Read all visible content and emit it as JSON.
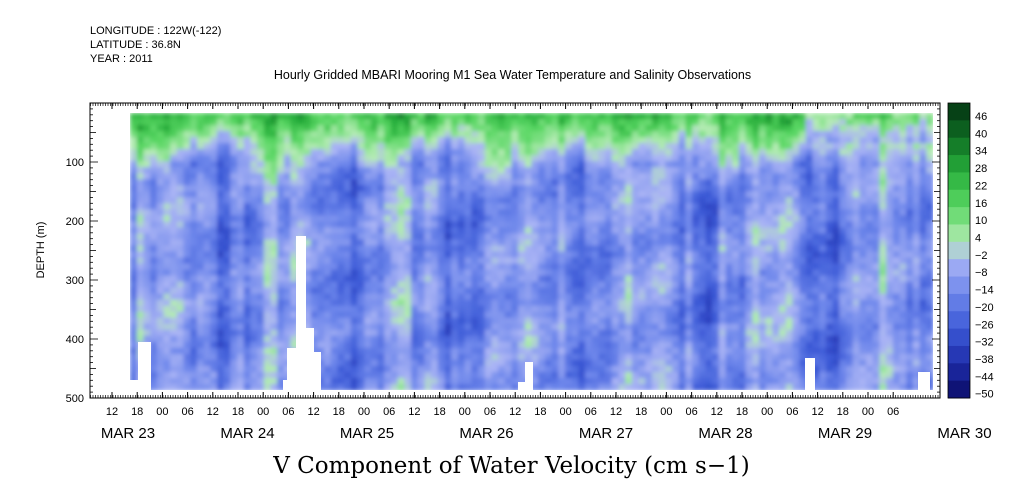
{
  "header": {
    "longitude": "LONGITUDE : 122W(-122)",
    "latitude": "LATITUDE : 36.8N",
    "year": "YEAR : 2011",
    "title": "Hourly Gridded MBARI Mooring M1 Sea Water Temperature and Salinity Observations"
  },
  "chart_data": {
    "type": "heatmap",
    "title": "Hourly Gridded MBARI Mooring M1 Sea Water Temperature and Salinity Observations",
    "subtitle": "V Component of Water Velocity (cm s-1)",
    "xlabel": "",
    "ylabel": "DEPTH (m)",
    "y_reversed": true,
    "ylim": [
      500,
      0
    ],
    "y_ticks": [
      100,
      200,
      300,
      400,
      500
    ],
    "x_hour_ticks": [
      "12",
      "18",
      "00",
      "06",
      "12",
      "18",
      "00",
      "06",
      "12",
      "18",
      "00",
      "06",
      "12",
      "18",
      "00",
      "06",
      "12",
      "18",
      "00",
      "06",
      "12",
      "18",
      "00",
      "06",
      "12",
      "18",
      "00",
      "06",
      "12",
      "18",
      "00",
      "06"
    ],
    "x_day_labels": [
      "MAR 23",
      "MAR 24",
      "MAR 25",
      "MAR 26",
      "MAR 27",
      "MAR 28",
      "MAR 29",
      "MAR 30"
    ],
    "colorbar_levels": [
      46,
      40,
      34,
      28,
      22,
      16,
      10,
      4,
      -2,
      -8,
      -14,
      -20,
      -26,
      -32,
      -38,
      -44,
      -50
    ],
    "colorbar_range": [
      -50,
      50
    ],
    "colors": {
      "strong_positive": "#0a4a1a",
      "positive": "#33cc44",
      "weak_positive": "#99e899",
      "weak_negative": "#a8b4f0",
      "negative": "#5566dd",
      "strong_negative": "#0a0a66"
    },
    "description_regions": {
      "surface_layer_depth_m": [
        20,
        100
      ],
      "surface_value_range": [
        10,
        46
      ],
      "interior_value_range": [
        -30,
        4
      ]
    }
  },
  "bottom_title": "V Component of Water Velocity (cm s−1)"
}
